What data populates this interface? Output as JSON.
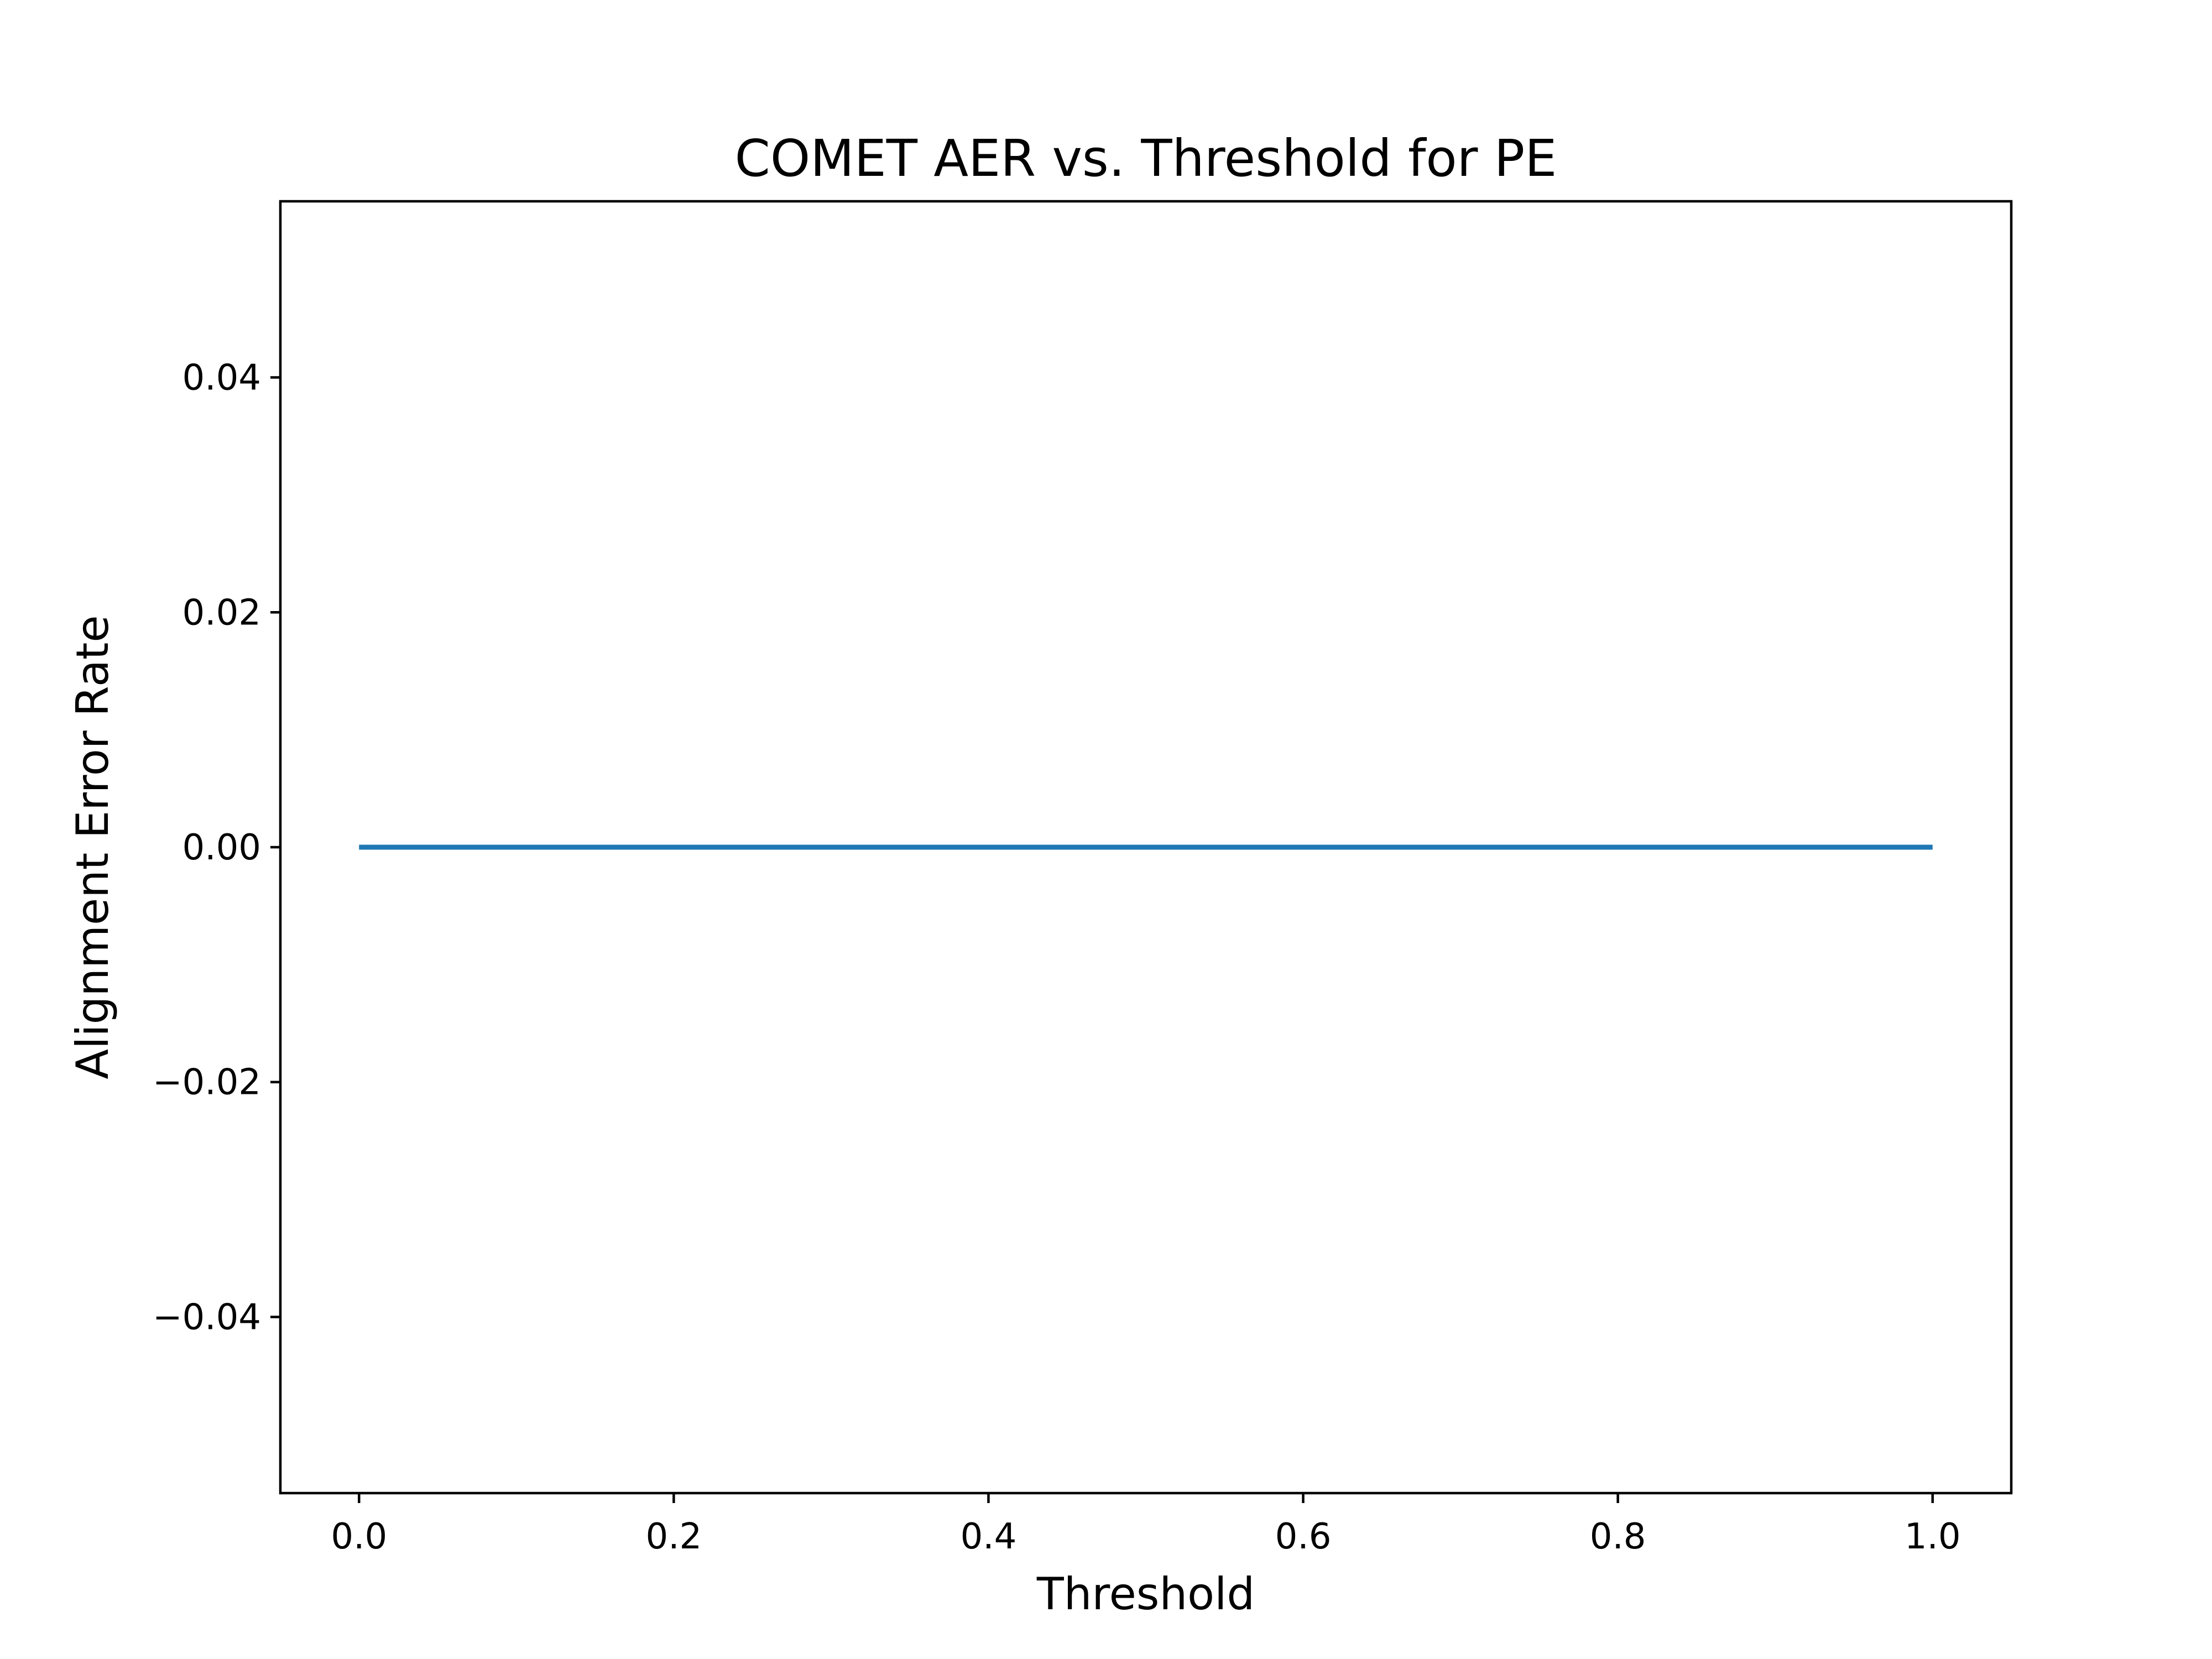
{
  "chart_data": {
    "type": "line",
    "title": "COMET AER vs. Threshold for PE",
    "xlabel": "Threshold",
    "ylabel": "Alignment Error Rate",
    "xlim": [
      -0.05,
      1.05
    ],
    "ylim": [
      -0.055,
      0.055
    ],
    "xticks": [
      0.0,
      0.2,
      0.4,
      0.6,
      0.8,
      1.0
    ],
    "xtick_labels": [
      "0.0",
      "0.2",
      "0.4",
      "0.6",
      "0.8",
      "1.0"
    ],
    "yticks": [
      0.04,
      0.02,
      0.0,
      -0.02,
      -0.04
    ],
    "ytick_labels": [
      "0.04",
      "0.02",
      "0.00",
      "−0.02",
      "−0.04"
    ],
    "grid": false,
    "series": [
      {
        "color": "#1f77b4",
        "x": [
          0.0,
          0.1,
          0.2,
          0.3,
          0.4,
          0.5,
          0.6,
          0.7,
          0.8,
          0.9,
          1.0
        ],
        "y": [
          0.0,
          0.0,
          0.0,
          0.0,
          0.0,
          0.0,
          0.0,
          0.0,
          0.0,
          0.0,
          0.0
        ]
      }
    ]
  }
}
